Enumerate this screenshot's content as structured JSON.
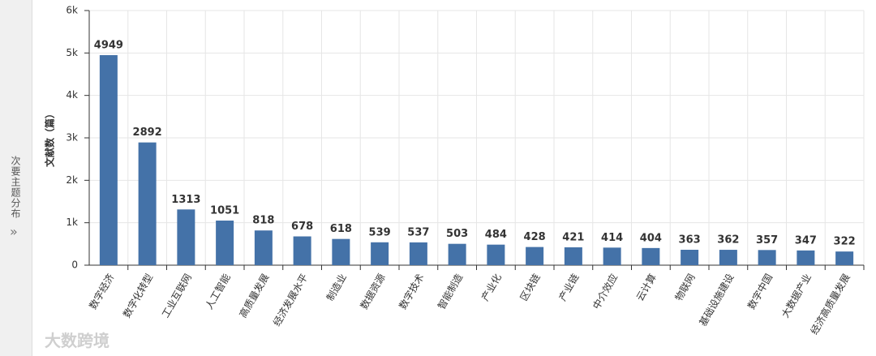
{
  "sidebar": {
    "title": "次要主题分布",
    "toggle": "»"
  },
  "watermark": "大数跨境",
  "chart_data": {
    "type": "bar",
    "y_label": "文献数（篇）",
    "categories": [
      "数字经济",
      "数字化转型",
      "工业互联网",
      "人工智能",
      "高质量发展",
      "经济发展水平",
      "制造业",
      "数据资源",
      "数字技术",
      "智能制造",
      "产业化",
      "区块链",
      "产业链",
      "中介效应",
      "云计算",
      "物联网",
      "基础设施建设",
      "数字中国",
      "大数据产业",
      "经济高质量发展"
    ],
    "values": [
      4949,
      2892,
      1313,
      1051,
      818,
      678,
      618,
      539,
      537,
      503,
      484,
      428,
      421,
      414,
      404,
      363,
      362,
      357,
      347,
      322
    ],
    "color": "#4472a8",
    "ylim": [
      0,
      6000
    ],
    "yticks": [
      0,
      {
        "value": 1000,
        "label": "1k"
      },
      {
        "value": 2000,
        "label": "2k"
      },
      {
        "value": 3000,
        "label": "3k"
      },
      {
        "value": 4000,
        "label": "4k"
      },
      {
        "value": 5000,
        "label": "5k"
      },
      {
        "value": 6000,
        "label": "6k"
      }
    ],
    "grid": true
  }
}
